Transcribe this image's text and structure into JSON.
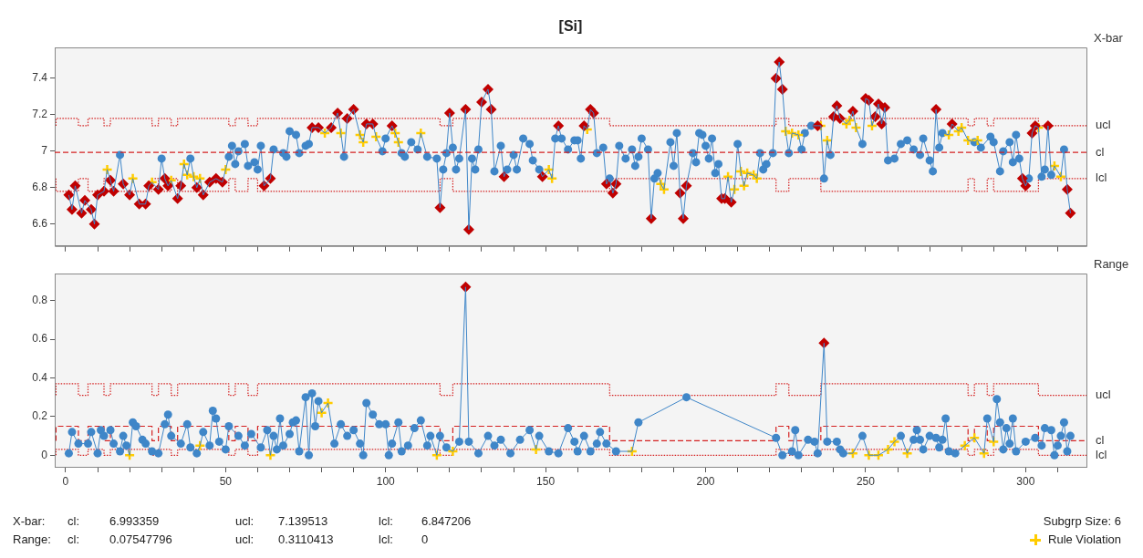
{
  "chart_data": [
    {
      "type": "line",
      "title": "[Si]",
      "ylabel": "X-bar",
      "xlim": [
        -3.4,
        319
      ],
      "ylim": [
        6.48,
        7.57
      ],
      "xticks": [
        0,
        {
          "value": 10,
          "label": null
        },
        {
          "value": 20,
          "label": null
        },
        {
          "value": 30,
          "label": null
        },
        {
          "value": 40,
          "label": null
        },
        50,
        {
          "value": 60,
          "label": null
        },
        {
          "value": 70,
          "label": null
        },
        {
          "value": 80,
          "label": null
        },
        {
          "value": 90,
          "label": null
        },
        100,
        {
          "value": 110,
          "label": null
        },
        {
          "value": 120,
          "label": null
        },
        {
          "value": 130,
          "label": null
        },
        {
          "value": 140,
          "label": null
        },
        150,
        {
          "value": 160,
          "label": null
        },
        {
          "value": 170,
          "label": null
        },
        {
          "value": 180,
          "label": null
        },
        {
          "value": 190,
          "label": null
        },
        200,
        {
          "value": 210,
          "label": null
        },
        {
          "value": 220,
          "label": null
        },
        {
          "value": 230,
          "label": null
        },
        {
          "value": 240,
          "label": null
        },
        250,
        {
          "value": 260,
          "label": null
        },
        {
          "value": 270,
          "label": null
        },
        {
          "value": 280,
          "label": null
        },
        {
          "value": 290,
          "label": null
        },
        300,
        {
          "value": 310,
          "label": null
        }
      ],
      "yticks": [
        6.6,
        6.8,
        7,
        7.2,
        7.4
      ],
      "tick_labels": "y",
      "ref_lines": [
        {
          "axis": "y",
          "value": 6.993359,
          "label": "cl",
          "color": "#d42020",
          "line_style": "dashed"
        }
      ],
      "series": [
        {
          "name": "ucl",
          "type": "step",
          "color": "#d42020",
          "line_style": "dotted",
          "marker": "none",
          "x": [
            -3,
            4,
            7,
            12,
            14,
            27,
            29,
            33,
            35,
            51,
            53,
            57,
            60,
            117,
            121,
            170,
            222,
            226,
            236,
            282,
            284,
            288,
            290,
            304,
            306,
            319
          ],
          "values": [
            7.14,
            7.18,
            7.14,
            7.18,
            7.14,
            7.18,
            7.14,
            7.18,
            7.14,
            7.18,
            7.14,
            7.18,
            7.14,
            7.18,
            7.14,
            7.18,
            7.14,
            7.18,
            7.14,
            7.18,
            7.14,
            7.18,
            7.14,
            7.18,
            7.14,
            7.14
          ]
        },
        {
          "name": "lcl",
          "type": "step",
          "color": "#d42020",
          "line_style": "dotted",
          "marker": "none",
          "x": [
            -3,
            4,
            7,
            12,
            14,
            27,
            29,
            33,
            35,
            51,
            53,
            57,
            60,
            117,
            121,
            170,
            222,
            226,
            236,
            282,
            284,
            288,
            290,
            304,
            306,
            319
          ],
          "values": [
            6.85,
            6.78,
            6.85,
            6.78,
            6.85,
            6.78,
            6.85,
            6.78,
            6.85,
            6.78,
            6.85,
            6.78,
            6.85,
            6.78,
            6.85,
            6.78,
            6.85,
            6.78,
            6.85,
            6.78,
            6.85,
            6.78,
            6.85,
            6.78,
            6.85,
            6.85
          ]
        },
        {
          "type": "line",
          "color": "#3f86c8",
          "marker": "none",
          "x": [
            1,
            2,
            3,
            5,
            6,
            8,
            9,
            10,
            12,
            13,
            14,
            15,
            17,
            18,
            20,
            21,
            23,
            25,
            26,
            27,
            29,
            30,
            31,
            32,
            33,
            35,
            36,
            37,
            38,
            39,
            40,
            41,
            42,
            43,
            45,
            47,
            49,
            50,
            51,
            52,
            53,
            54,
            56,
            57,
            59,
            60,
            61,
            62,
            64,
            65,
            68,
            69,
            70,
            72,
            73,
            75,
            76,
            77,
            79,
            81,
            83,
            85,
            86,
            87,
            88,
            90,
            92,
            93,
            94,
            96,
            97,
            99,
            100,
            102,
            103,
            104,
            105,
            106,
            108,
            110,
            111,
            113,
            116,
            117,
            118,
            119,
            120,
            121,
            122,
            123,
            125,
            126,
            127,
            128,
            129,
            130,
            132,
            133,
            134,
            136,
            137,
            138,
            140,
            141,
            143,
            145,
            146,
            148,
            149,
            151,
            152,
            153,
            154,
            155,
            157,
            159,
            160,
            161,
            162,
            163,
            164,
            165,
            166,
            168,
            169,
            170,
            171,
            172,
            173,
            175,
            177,
            178,
            179,
            180,
            182,
            183,
            184,
            185,
            186,
            187,
            189,
            190,
            191,
            192,
            193,
            194,
            196,
            197,
            198,
            199,
            200,
            201,
            202,
            203,
            204,
            205,
            206,
            207,
            208,
            209,
            210,
            211,
            212,
            213,
            215,
            216,
            217,
            218,
            219,
            221,
            222,
            223,
            224,
            225,
            226,
            227,
            229,
            230,
            231,
            233,
            235,
            236,
            237,
            238,
            239,
            240,
            241,
            242,
            244,
            245,
            246,
            247,
            249,
            250,
            251,
            252,
            253,
            254,
            255,
            256,
            257,
            259,
            261,
            263,
            265,
            267,
            268,
            270,
            271,
            272,
            273,
            274,
            276,
            277,
            279,
            280,
            282,
            284,
            285,
            286,
            289,
            290,
            292,
            293,
            295,
            296,
            297,
            298,
            299,
            300,
            301,
            302,
            303,
            304,
            305,
            306,
            307,
            308,
            309,
            311,
            312,
            313,
            314
          ],
          "values": [
            6.76,
            6.68,
            6.81,
            6.66,
            6.73,
            6.68,
            6.6,
            6.76,
            6.78,
            6.9,
            6.84,
            6.78,
            6.98,
            6.82,
            6.76,
            6.85,
            6.71,
            6.71,
            6.81,
            6.83,
            6.79,
            6.96,
            6.85,
            6.81,
            6.84,
            6.74,
            6.81,
            6.93,
            6.87,
            6.96,
            6.86,
            6.8,
            6.85,
            6.76,
            6.83,
            6.85,
            6.83,
            6.9,
            6.97,
            7.03,
            6.93,
            7,
            7.04,
            6.92,
            6.94,
            6.9,
            7.03,
            6.81,
            6.85,
            7.01,
            6.99,
            6.97,
            7.11,
            7.09,
            6.99,
            7.03,
            7.04,
            7.13,
            7.13,
            7.1,
            7.13,
            7.21,
            7.1,
            6.97,
            7.18,
            7.23,
            7.09,
            7.05,
            7.15,
            7.15,
            7.08,
            7,
            7.07,
            7.14,
            7.1,
            7.05,
            6.99,
            6.97,
            7.05,
            7.01,
            7.1,
            6.97,
            6.96,
            6.69,
            6.9,
            6.99,
            7.21,
            7.02,
            6.9,
            6.96,
            7.23,
            6.57,
            6.96,
            6.9,
            7.01,
            7.27,
            7.34,
            7.23,
            6.89,
            7.03,
            6.86,
            6.9,
            6.98,
            6.9,
            7.07,
            7.04,
            6.95,
            6.9,
            6.86,
            6.9,
            6.85,
            7.07,
            7.14,
            7.07,
            7.01,
            7.06,
            7.06,
            6.96,
            7.14,
            7.12,
            7.23,
            7.21,
            6.99,
            7.02,
            6.82,
            6.85,
            6.77,
            6.82,
            7.03,
            6.96,
            7.01,
            6.92,
            6.97,
            7.07,
            7.01,
            6.63,
            6.85,
            6.88,
            6.82,
            6.79,
            7.05,
            6.92,
            7.1,
            6.77,
            6.63,
            6.81,
            6.99,
            6.94,
            7.1,
            7.09,
            7.03,
            6.96,
            7.07,
            6.88,
            6.93,
            6.74,
            6.74,
            6.86,
            6.72,
            6.79,
            7.04,
            6.89,
            6.81,
            6.88,
            6.87,
            6.85,
            6.99,
            6.9,
            6.93,
            6.99,
            7.4,
            7.49,
            7.34,
            7.11,
            6.99,
            7.1,
            7.09,
            7.01,
            7.1,
            7.14,
            7.14,
            7.14,
            6.85,
            7.06,
            6.98,
            7.19,
            7.25,
            7.18,
            7.15,
            7.17,
            7.22,
            7.13,
            7.04,
            7.29,
            7.28,
            7.14,
            7.19,
            7.26,
            7.15,
            7.24,
            6.95,
            6.96,
            7.04,
            7.06,
            7.01,
            6.98,
            7.07,
            6.95,
            6.89,
            7.23,
            7.02,
            7.1,
            7.09,
            7.15,
            7.11,
            7.13,
            7.06,
            7.05,
            7.06,
            7.02,
            7.08,
            7.05,
            6.89,
            7,
            7.05,
            6.94,
            7.09,
            6.96,
            6.85,
            6.81,
            6.85,
            7.1,
            7.14,
            7.13,
            6.86,
            6.9,
            7.14,
            6.87,
            6.92,
            6.86,
            7.01,
            6.79,
            6.66
          ]
        },
        {
          "type": "scatter",
          "color": "#3f86c8",
          "marker": "circle",
          "x": [
            17,
            30,
            39,
            51,
            52,
            53,
            54,
            56,
            57,
            59,
            60,
            61,
            65,
            68,
            69,
            70,
            72,
            73,
            75,
            76,
            87,
            99,
            100,
            105,
            106,
            108,
            110,
            113,
            116,
            118,
            119,
            121,
            122,
            123,
            127,
            128,
            129,
            134,
            136,
            138,
            140,
            141,
            143,
            145,
            146,
            148,
            153,
            155,
            157,
            159,
            160,
            161,
            166,
            168,
            170,
            173,
            175,
            177,
            178,
            179,
            180,
            182,
            184,
            185,
            189,
            190,
            191,
            196,
            197,
            198,
            199,
            200,
            201,
            202,
            203,
            204,
            210,
            217,
            218,
            219,
            221,
            226,
            230,
            231,
            233,
            237,
            239,
            249,
            257,
            259,
            261,
            263,
            265,
            267,
            268,
            270,
            271,
            273,
            274,
            284,
            286,
            289,
            290,
            292,
            293,
            295,
            296,
            297,
            298,
            301,
            305,
            306,
            308,
            312
          ],
          "values": [
            6.98,
            6.96,
            6.96,
            6.97,
            7.03,
            6.93,
            7,
            7.04,
            6.92,
            6.94,
            6.9,
            7.03,
            7.01,
            6.99,
            6.97,
            7.11,
            7.09,
            6.99,
            7.03,
            7.04,
            6.97,
            7,
            7.07,
            6.99,
            6.97,
            7.05,
            7.01,
            6.97,
            6.96,
            6.9,
            6.99,
            7.02,
            6.9,
            6.96,
            6.96,
            6.9,
            7.01,
            6.89,
            7.03,
            6.9,
            6.98,
            6.9,
            7.07,
            7.04,
            6.95,
            6.9,
            7.07,
            7.07,
            7.01,
            7.06,
            7.06,
            6.96,
            6.99,
            7.02,
            6.85,
            7.03,
            6.96,
            7.01,
            6.92,
            6.97,
            7.07,
            7.01,
            6.85,
            6.88,
            7.05,
            6.92,
            7.1,
            6.99,
            6.94,
            7.1,
            7.09,
            7.03,
            6.96,
            7.07,
            6.88,
            6.93,
            7.04,
            6.99,
            6.9,
            6.93,
            6.99,
            6.99,
            7.01,
            7.1,
            7.14,
            6.85,
            6.98,
            7.04,
            6.95,
            6.96,
            7.04,
            7.06,
            7.01,
            6.98,
            7.07,
            6.95,
            6.89,
            7.02,
            7.1,
            7.05,
            7.02,
            7.08,
            7.05,
            6.89,
            7,
            7.05,
            6.94,
            7.09,
            6.96,
            6.85,
            6.86,
            6.9,
            6.87,
            7.01
          ]
        },
        {
          "type": "scatter",
          "color": "#ffcc00",
          "marker": "cross",
          "x": [
            13,
            21,
            27,
            33,
            37,
            38,
            40,
            42,
            50,
            81,
            86,
            92,
            93,
            97,
            103,
            104,
            111,
            151,
            152,
            163,
            186,
            187,
            207,
            209,
            211,
            212,
            213,
            215,
            216,
            225,
            227,
            229,
            236,
            238,
            244,
            245,
            247,
            252,
            276,
            279,
            280,
            282,
            285,
            304,
            309,
            311
          ],
          "values": [
            6.9,
            6.85,
            6.83,
            6.84,
            6.93,
            6.87,
            6.86,
            6.85,
            6.9,
            7.1,
            7.1,
            7.09,
            7.05,
            7.08,
            7.1,
            7.05,
            7.1,
            6.9,
            6.85,
            7.12,
            6.82,
            6.79,
            6.86,
            6.79,
            6.89,
            6.81,
            6.88,
            6.87,
            6.85,
            7.11,
            7.1,
            7.09,
            7.14,
            7.06,
            7.15,
            7.17,
            7.13,
            7.14,
            7.09,
            7.11,
            7.13,
            7.06,
            7.06,
            7.13,
            6.92,
            6.86
          ]
        },
        {
          "type": "scatter",
          "color": "#c00000",
          "marker": "diamond",
          "x": [
            1,
            2,
            3,
            5,
            6,
            8,
            9,
            10,
            12,
            14,
            15,
            18,
            20,
            23,
            25,
            26,
            29,
            31,
            32,
            35,
            36,
            41,
            43,
            45,
            47,
            49,
            62,
            64,
            77,
            79,
            83,
            85,
            88,
            90,
            94,
            96,
            102,
            117,
            120,
            125,
            126,
            130,
            132,
            133,
            137,
            149,
            154,
            162,
            164,
            165,
            169,
            171,
            172,
            183,
            192,
            193,
            194,
            205,
            206,
            208,
            222,
            223,
            224,
            235,
            240,
            241,
            242,
            246,
            250,
            251,
            253,
            254,
            255,
            256,
            272,
            277,
            299,
            300,
            302,
            303,
            307,
            313,
            314
          ],
          "values": [
            6.76,
            6.68,
            6.81,
            6.66,
            6.73,
            6.68,
            6.6,
            6.76,
            6.78,
            6.84,
            6.78,
            6.82,
            6.76,
            6.71,
            6.71,
            6.81,
            6.79,
            6.85,
            6.81,
            6.74,
            6.81,
            6.8,
            6.76,
            6.83,
            6.85,
            6.83,
            6.81,
            6.85,
            7.13,
            7.13,
            7.13,
            7.21,
            7.18,
            7.23,
            7.15,
            7.15,
            7.14,
            6.69,
            7.21,
            7.23,
            6.57,
            7.27,
            7.34,
            7.23,
            6.86,
            6.86,
            7.14,
            7.14,
            7.23,
            7.21,
            6.82,
            6.77,
            6.82,
            6.63,
            6.77,
            6.63,
            6.81,
            6.74,
            6.74,
            6.72,
            7.4,
            7.49,
            7.34,
            7.14,
            7.19,
            7.25,
            7.18,
            7.22,
            7.29,
            7.28,
            7.19,
            7.26,
            7.15,
            7.24,
            7.23,
            7.15,
            6.85,
            6.81,
            7.1,
            7.14,
            7.14,
            6.79,
            6.66
          ]
        }
      ]
    },
    {
      "type": "line",
      "ylabel": "Range",
      "xlim": [
        -3.4,
        319
      ],
      "ylim": [
        -0.06,
        0.94
      ],
      "xticks": [
        0,
        {
          "value": 10,
          "label": null
        },
        {
          "value": 20,
          "label": null
        },
        {
          "value": 30,
          "label": null
        },
        {
          "value": 40,
          "label": null
        },
        50,
        {
          "value": 60,
          "label": null
        },
        {
          "value": 70,
          "label": null
        },
        {
          "value": 80,
          "label": null
        },
        {
          "value": 90,
          "label": null
        },
        100,
        {
          "value": 110,
          "label": null
        },
        {
          "value": 120,
          "label": null
        },
        {
          "value": 130,
          "label": null
        },
        {
          "value": 140,
          "label": null
        },
        150,
        {
          "value": 160,
          "label": null
        },
        {
          "value": 170,
          "label": null
        },
        {
          "value": 180,
          "label": null
        },
        {
          "value": 190,
          "label": null
        },
        200,
        {
          "value": 210,
          "label": null
        },
        {
          "value": 220,
          "label": null
        },
        {
          "value": 230,
          "label": null
        },
        {
          "value": 240,
          "label": null
        },
        250,
        {
          "value": 260,
          "label": null
        },
        {
          "value": 270,
          "label": null
        },
        {
          "value": 280,
          "label": null
        },
        {
          "value": 290,
          "label": null
        },
        300,
        {
          "value": 310,
          "label": null
        }
      ],
      "yticks": [
        0,
        0.2,
        0.4,
        0.6,
        0.8
      ],
      "legend": "bottom right",
      "annotations": [
        "X-bar:",
        "cl:",
        "6.993359",
        "ucl:",
        "7.139513",
        "lcl:",
        "6.847206",
        "Range:",
        "cl:",
        "0.07547796",
        "ucl:",
        "0.3110413",
        "lcl:",
        "0",
        "Subgrp Size: 6"
      ],
      "series": [
        {
          "name": "ucl",
          "type": "step",
          "color": "#d42020",
          "line_style": "dotted",
          "marker": "none",
          "x": [
            -3,
            4,
            7,
            12,
            14,
            27,
            29,
            33,
            35,
            51,
            53,
            57,
            60,
            117,
            121,
            170,
            222,
            226,
            236,
            282,
            284,
            288,
            290,
            304,
            306,
            319
          ],
          "values": [
            0.31,
            0.37,
            0.31,
            0.37,
            0.31,
            0.37,
            0.31,
            0.37,
            0.31,
            0.37,
            0.31,
            0.37,
            0.31,
            0.37,
            0.31,
            0.37,
            0.31,
            0.37,
            0.31,
            0.37,
            0.31,
            0.37,
            0.31,
            0.37,
            0.31,
            0.31
          ]
        },
        {
          "name": "cl",
          "type": "step",
          "color": "#d42020",
          "line_style": "dashed",
          "marker": "none",
          "x": [
            -3,
            4,
            7,
            12,
            14,
            27,
            29,
            33,
            35,
            51,
            53,
            57,
            60,
            117,
            121,
            170,
            222,
            226,
            236,
            282,
            284,
            288,
            290,
            304,
            306,
            319
          ],
          "values": [
            0.075,
            0.15,
            0.075,
            0.15,
            0.075,
            0.15,
            0.075,
            0.15,
            0.075,
            0.15,
            0.075,
            0.15,
            0.075,
            0.15,
            0.075,
            0.15,
            0.075,
            0.15,
            0.075,
            0.15,
            0.075,
            0.15,
            0.075,
            0.15,
            0.075,
            0.075
          ]
        },
        {
          "name": "lcl",
          "type": "step",
          "color": "#d42020",
          "line_style": "dotted",
          "marker": "none",
          "x": [
            -3,
            4,
            7,
            12,
            14,
            27,
            29,
            33,
            35,
            51,
            53,
            57,
            60,
            117,
            121,
            170,
            222,
            226,
            236,
            282,
            284,
            288,
            290,
            304,
            306,
            319
          ],
          "values": [
            0,
            0.03,
            0,
            0.03,
            0,
            0.03,
            0,
            0.03,
            0,
            0.03,
            0,
            0.03,
            0,
            0.03,
            0,
            0.03,
            0,
            0.03,
            0,
            0.03,
            0,
            0.03,
            0,
            0.03,
            0,
            0
          ]
        },
        {
          "type": "line",
          "color": "#3f86c8",
          "marker": "none",
          "x": [
            1,
            2,
            4,
            7,
            8,
            10,
            11,
            12,
            14,
            15,
            17,
            18,
            19,
            20,
            21,
            22,
            24,
            25,
            27,
            29,
            31,
            32,
            33,
            36,
            38,
            39,
            41,
            42,
            43,
            45,
            46,
            47,
            48,
            50,
            51,
            54,
            56,
            58,
            61,
            63,
            64,
            65,
            66,
            67,
            68,
            70,
            71,
            72,
            73,
            75,
            76,
            77,
            78,
            79,
            80,
            82,
            84,
            86,
            88,
            90,
            92,
            93,
            94,
            96,
            98,
            100,
            101,
            102,
            104,
            105,
            107,
            109,
            111,
            113,
            114,
            116,
            117,
            119,
            121,
            123,
            125,
            126,
            129,
            132,
            134,
            136,
            139,
            142,
            145,
            147,
            148,
            151,
            154,
            157,
            159,
            160,
            162,
            164,
            166,
            167,
            169,
            172,
            177,
            179,
            194,
            222,
            224,
            227,
            228,
            229,
            232,
            234,
            235,
            237,
            238,
            241,
            242,
            243,
            246,
            249,
            251,
            254,
            257,
            259,
            261,
            263,
            265,
            266,
            267,
            268,
            270,
            272,
            273,
            274,
            275,
            276,
            278,
            281,
            284,
            287,
            288,
            290,
            291,
            292,
            293,
            294,
            295,
            296,
            297,
            300,
            303,
            305,
            306,
            308,
            309,
            310,
            311,
            312,
            313,
            314
          ],
          "values": [
            0.01,
            0.12,
            0.06,
            0.06,
            0.12,
            0.01,
            0.13,
            0.1,
            0.13,
            0.06,
            0.02,
            0.1,
            0.05,
            0,
            0.17,
            0.15,
            0.08,
            0.06,
            0.02,
            0.01,
            0.16,
            0.21,
            0.1,
            0.06,
            0.16,
            0.04,
            0.01,
            0.05,
            0.12,
            0.05,
            0.23,
            0.19,
            0.07,
            0.03,
            0.15,
            0.1,
            0.05,
            0.11,
            0.04,
            0.13,
            0,
            0.1,
            0.03,
            0.19,
            0.05,
            0.11,
            0.17,
            0.18,
            0.02,
            0.3,
            0,
            0.32,
            0.15,
            0.28,
            0.22,
            0.27,
            0.06,
            0.16,
            0.1,
            0.13,
            0.06,
            0,
            0.27,
            0.21,
            0.16,
            0.16,
            0,
            0.06,
            0.17,
            0.02,
            0.05,
            0.14,
            0.18,
            0.05,
            0.1,
            0,
            0.1,
            0.04,
            0.02,
            0.07,
            0.87,
            0.07,
            0.01,
            0.1,
            0.05,
            0.08,
            0.01,
            0.08,
            0.13,
            0.03,
            0.1,
            0.02,
            0.01,
            0.14,
            0.07,
            0.02,
            0.1,
            0.02,
            0.06,
            0.12,
            0.06,
            0.02,
            0.02,
            0.17,
            0.3,
            0.09,
            0,
            0.02,
            0.13,
            0,
            0.08,
            0.07,
            0.01,
            0.58,
            0.07,
            0.07,
            0.03,
            0.01,
            0.01,
            0.1,
            0,
            0,
            0.03,
            0.07,
            0.1,
            0.01,
            0.08,
            0.13,
            0.08,
            0.03,
            0.1,
            0.09,
            0.04,
            0.08,
            0.19,
            0.02,
            0.01,
            0.05,
            0.09,
            0.01,
            0.19,
            0.07,
            0.29,
            0.17,
            0.03,
            0.14,
            0.06,
            0.19,
            0.02,
            0.07,
            0.09,
            0.05,
            0.14,
            0.13,
            0,
            0.05,
            0.1,
            0.17,
            0.02,
            0.1
          ]
        },
        {
          "type": "scatter",
          "color": "#3f86c8",
          "marker": "circle",
          "x": [
            1,
            2,
            4,
            7,
            8,
            10,
            11,
            12,
            14,
            15,
            17,
            18,
            19,
            21,
            22,
            24,
            25,
            27,
            29,
            31,
            32,
            33,
            36,
            38,
            39,
            41,
            43,
            45,
            46,
            47,
            48,
            50,
            51,
            54,
            56,
            58,
            61,
            63,
            65,
            66,
            67,
            68,
            70,
            71,
            72,
            73,
            75,
            76,
            77,
            78,
            79,
            84,
            86,
            88,
            90,
            92,
            93,
            94,
            96,
            98,
            100,
            101,
            102,
            104,
            105,
            107,
            109,
            111,
            113,
            114,
            117,
            119,
            123,
            126,
            129,
            132,
            134,
            136,
            139,
            142,
            145,
            148,
            151,
            154,
            157,
            159,
            160,
            162,
            164,
            166,
            167,
            169,
            172,
            179,
            194,
            222,
            224,
            227,
            228,
            229,
            232,
            234,
            235,
            238,
            241,
            242,
            243,
            249,
            261,
            265,
            266,
            267,
            268,
            270,
            272,
            273,
            274,
            275,
            276,
            278,
            288,
            291,
            292,
            293,
            294,
            295,
            296,
            297,
            300,
            303,
            305,
            306,
            308,
            309,
            310,
            311,
            312,
            313,
            314
          ],
          "values": [
            0.01,
            0.12,
            0.06,
            0.06,
            0.12,
            0.01,
            0.13,
            0.1,
            0.13,
            0.06,
            0.02,
            0.1,
            0.05,
            0.17,
            0.15,
            0.08,
            0.06,
            0.02,
            0.01,
            0.16,
            0.21,
            0.1,
            0.06,
            0.16,
            0.04,
            0.01,
            0.12,
            0.05,
            0.23,
            0.19,
            0.07,
            0.03,
            0.15,
            0.1,
            0.05,
            0.11,
            0.04,
            0.13,
            0.1,
            0.03,
            0.19,
            0.05,
            0.11,
            0.17,
            0.18,
            0.02,
            0.3,
            0,
            0.32,
            0.15,
            0.28,
            0.06,
            0.16,
            0.1,
            0.13,
            0.06,
            0,
            0.27,
            0.21,
            0.16,
            0.16,
            0,
            0.06,
            0.17,
            0.02,
            0.05,
            0.14,
            0.18,
            0.05,
            0.1,
            0.1,
            0.04,
            0.07,
            0.07,
            0.01,
            0.1,
            0.05,
            0.08,
            0.01,
            0.08,
            0.13,
            0.1,
            0.02,
            0.01,
            0.14,
            0.07,
            0.02,
            0.1,
            0.02,
            0.06,
            0.12,
            0.06,
            0.02,
            0.17,
            0.3,
            0.09,
            0,
            0.02,
            0.13,
            0,
            0.08,
            0.07,
            0.01,
            0.07,
            0.07,
            0.03,
            0.01,
            0.1,
            0.1,
            0.08,
            0.13,
            0.08,
            0.03,
            0.1,
            0.09,
            0.04,
            0.08,
            0.19,
            0.02,
            0.01,
            0.19,
            0.29,
            0.17,
            0.03,
            0.14,
            0.06,
            0.19,
            0.02,
            0.07,
            0.09,
            0.05,
            0.14,
            0.13,
            0,
            0.05,
            0.1,
            0.17,
            0.02,
            0.1
          ]
        },
        {
          "name": "Rule Violation",
          "type": "scatter",
          "color": "#ffcc00",
          "marker": "cross",
          "x": [
            20,
            42,
            64,
            80,
            82,
            116,
            121,
            147,
            177,
            246,
            251,
            254,
            257,
            259,
            263,
            281,
            284,
            287,
            290
          ],
          "values": [
            0,
            0.05,
            0,
            0.22,
            0.27,
            0,
            0.02,
            0.03,
            0.02,
            0.01,
            0,
            0,
            0.03,
            0.07,
            0.01,
            0.05,
            0.09,
            0.01,
            0.07
          ]
        },
        {
          "type": "scatter",
          "color": "#c00000",
          "marker": "diamond",
          "x": [
            125,
            237
          ],
          "values": [
            0.87,
            0.58
          ]
        }
      ]
    }
  ]
}
